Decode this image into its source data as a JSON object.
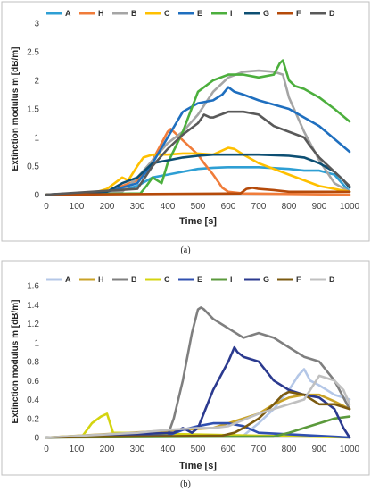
{
  "chart_data": [
    {
      "type": "line",
      "caption": "(a)",
      "xlabel": "Time [s]",
      "ylabel": "Extinction modulus m [dB/m]",
      "xlim": [
        0,
        1000
      ],
      "ylim": [
        0,
        3
      ],
      "xticks": [
        "0",
        "100",
        "200",
        "300",
        "400",
        "500",
        "600",
        "700",
        "800",
        "900",
        "1000"
      ],
      "yticks": [
        "0",
        "0.5",
        "1",
        "1.5",
        "2",
        "2.5",
        "3"
      ],
      "legend_position": "top",
      "grid": false,
      "series": [
        {
          "name": "A",
          "color": "#2e9fd4",
          "x": [
            0,
            200,
            300,
            350,
            400,
            450,
            500,
            550,
            600,
            650,
            700,
            800,
            850,
            900,
            950,
            1000
          ],
          "y": [
            0,
            0.02,
            0.15,
            0.3,
            0.35,
            0.4,
            0.45,
            0.47,
            0.48,
            0.48,
            0.48,
            0.45,
            0.42,
            0.42,
            0.35,
            0.05
          ]
        },
        {
          "name": "H",
          "color": "#f07c3a",
          "x": [
            0,
            200,
            300,
            350,
            380,
            400,
            410,
            420,
            450,
            480,
            500,
            520,
            550,
            570,
            580,
            600,
            650,
            1000
          ],
          "y": [
            0,
            0.05,
            0.25,
            0.6,
            0.9,
            1.1,
            1.15,
            1.1,
            0.95,
            0.8,
            0.7,
            0.55,
            0.35,
            0.2,
            0.12,
            0.05,
            0.02,
            0
          ]
        },
        {
          "name": "B",
          "color": "#a5a5a5",
          "x": [
            0,
            250,
            300,
            350,
            400,
            450,
            500,
            550,
            600,
            650,
            700,
            750,
            780,
            800,
            850,
            900,
            950,
            1000
          ],
          "y": [
            0,
            0.05,
            0.3,
            0.6,
            0.9,
            1.1,
            1.4,
            1.8,
            2.05,
            2.15,
            2.17,
            2.15,
            2.1,
            1.7,
            1.1,
            0.6,
            0.2,
            0.05
          ]
        },
        {
          "name": "C",
          "color": "#ffc000",
          "x": [
            0,
            150,
            200,
            250,
            270,
            300,
            320,
            350,
            400,
            450,
            500,
            550,
            600,
            620,
            650,
            700,
            750,
            800,
            900,
            1000
          ],
          "y": [
            0,
            0.02,
            0.1,
            0.3,
            0.25,
            0.5,
            0.65,
            0.7,
            0.7,
            0.72,
            0.72,
            0.7,
            0.82,
            0.8,
            0.7,
            0.55,
            0.45,
            0.35,
            0.15,
            0.05
          ]
        },
        {
          "name": "E",
          "color": "#1f6fbf",
          "x": [
            0,
            200,
            300,
            350,
            400,
            450,
            500,
            550,
            580,
            600,
            620,
            650,
            700,
            800,
            900,
            1000
          ],
          "y": [
            0,
            0.05,
            0.2,
            0.55,
            1.0,
            1.45,
            1.6,
            1.65,
            1.75,
            1.88,
            1.8,
            1.75,
            1.65,
            1.5,
            1.2,
            0.75
          ]
        },
        {
          "name": "I",
          "color": "#4caf3d",
          "x": [
            0,
            310,
            330,
            350,
            380,
            400,
            450,
            500,
            550,
            600,
            650,
            700,
            750,
            770,
            780,
            800,
            820,
            850,
            900,
            950,
            1000
          ],
          "y": [
            0,
            0.02,
            0.15,
            0.3,
            0.2,
            0.55,
            1.1,
            1.8,
            2.0,
            2.1,
            2.1,
            2.05,
            2.1,
            2.3,
            2.35,
            2.0,
            1.9,
            1.85,
            1.7,
            1.5,
            1.28
          ]
        },
        {
          "name": "G",
          "color": "#0d4f73",
          "x": [
            0,
            200,
            250,
            300,
            350,
            400,
            450,
            500,
            550,
            600,
            700,
            800,
            850,
            900,
            950,
            980,
            1000
          ],
          "y": [
            0,
            0.05,
            0.2,
            0.3,
            0.55,
            0.6,
            0.65,
            0.68,
            0.7,
            0.7,
            0.7,
            0.68,
            0.65,
            0.55,
            0.4,
            0.25,
            0.12
          ]
        },
        {
          "name": "F",
          "color": "#b54a0a",
          "x": [
            0,
            640,
            660,
            680,
            700,
            750,
            800,
            900,
            1000
          ],
          "y": [
            0,
            0.02,
            0.1,
            0.12,
            0.1,
            0.08,
            0.05,
            0.05,
            0.05
          ]
        },
        {
          "name": "D",
          "color": "#595959",
          "x": [
            0,
            300,
            350,
            400,
            450,
            500,
            520,
            540,
            550,
            600,
            650,
            700,
            750,
            800,
            850,
            870,
            900,
            950,
            1000
          ],
          "y": [
            0,
            0.1,
            0.5,
            0.8,
            1.05,
            1.25,
            1.4,
            1.35,
            1.35,
            1.45,
            1.45,
            1.4,
            1.2,
            1.1,
            1.0,
            0.85,
            0.65,
            0.4,
            0.15
          ]
        }
      ]
    },
    {
      "type": "line",
      "caption": "(b)",
      "xlabel": "Time [s]",
      "ylabel": "Extinction modulus m [dB/m]",
      "xlim": [
        0,
        1000
      ],
      "ylim": [
        0,
        1.6
      ],
      "xticks": [
        "0",
        "100",
        "200",
        "300",
        "400",
        "500",
        "600",
        "700",
        "800",
        "900",
        "1000"
      ],
      "yticks": [
        "0",
        "0.2",
        "0.4",
        "0.6",
        "0.8",
        "1",
        "1.2",
        "1.4",
        "1.6"
      ],
      "legend_position": "top",
      "grid": false,
      "series": [
        {
          "name": "A",
          "color": "#b4c7e7",
          "x": [
            0,
            650,
            700,
            750,
            800,
            830,
            850,
            870,
            900,
            950,
            1000
          ],
          "y": [
            0,
            0.02,
            0.15,
            0.3,
            0.5,
            0.65,
            0.72,
            0.6,
            0.55,
            0.45,
            0.4
          ]
        },
        {
          "name": "H",
          "color": "#c9a227",
          "x": [
            0,
            550,
            600,
            650,
            700,
            750,
            800,
            850,
            900,
            950,
            1000
          ],
          "y": [
            0,
            0.1,
            0.15,
            0.2,
            0.25,
            0.35,
            0.42,
            0.45,
            0.45,
            0.38,
            0.3
          ]
        },
        {
          "name": "B",
          "color": "#7f7f7f",
          "x": [
            0,
            400,
            420,
            450,
            480,
            500,
            510,
            520,
            550,
            600,
            650,
            700,
            750,
            800,
            850,
            900,
            950,
            1000
          ],
          "y": [
            0,
            0.02,
            0.2,
            0.6,
            1.1,
            1.35,
            1.37,
            1.35,
            1.25,
            1.15,
            1.05,
            1.1,
            1.05,
            0.95,
            0.85,
            0.8,
            0.6,
            0.3
          ]
        },
        {
          "name": "C",
          "color": "#d4d410",
          "x": [
            0,
            120,
            150,
            180,
            200,
            220,
            1000
          ],
          "y": [
            0,
            0.02,
            0.15,
            0.22,
            0.25,
            0.05,
            0
          ]
        },
        {
          "name": "E",
          "color": "#3050b0",
          "x": [
            0,
            400,
            450,
            500,
            550,
            600,
            650,
            700,
            1000
          ],
          "y": [
            0,
            0.02,
            0.08,
            0.12,
            0.15,
            0.15,
            0.12,
            0.05,
            0
          ]
        },
        {
          "name": "I",
          "color": "#5b9a3c",
          "x": [
            0,
            750,
            800,
            850,
            900,
            950,
            1000
          ],
          "y": [
            0,
            0.01,
            0.05,
            0.1,
            0.15,
            0.2,
            0.22
          ]
        },
        {
          "name": "G",
          "color": "#2b3a8f",
          "x": [
            0,
            420,
            450,
            480,
            500,
            550,
            600,
            620,
            630,
            650,
            700,
            750,
            800,
            850,
            900,
            950,
            980,
            1000
          ],
          "y": [
            0,
            0.05,
            0.1,
            0.05,
            0.1,
            0.5,
            0.8,
            0.95,
            0.9,
            0.85,
            0.8,
            0.6,
            0.5,
            0.45,
            0.42,
            0.3,
            0.1,
            0
          ]
        },
        {
          "name": "F",
          "color": "#7b5a10",
          "x": [
            0,
            580,
            620,
            650,
            700,
            750,
            780,
            800,
            850,
            900,
            950,
            1000
          ],
          "y": [
            0,
            0.02,
            0.05,
            0.1,
            0.2,
            0.35,
            0.45,
            0.48,
            0.45,
            0.35,
            0.35,
            0.3
          ]
        },
        {
          "name": "D",
          "color": "#c0c0c0",
          "x": [
            0,
            300,
            400,
            500,
            550,
            600,
            700,
            800,
            850,
            900,
            950,
            980,
            1000
          ],
          "y": [
            0,
            0.05,
            0.08,
            0.1,
            0.1,
            0.12,
            0.25,
            0.35,
            0.4,
            0.65,
            0.6,
            0.5,
            0.35
          ]
        }
      ]
    }
  ]
}
